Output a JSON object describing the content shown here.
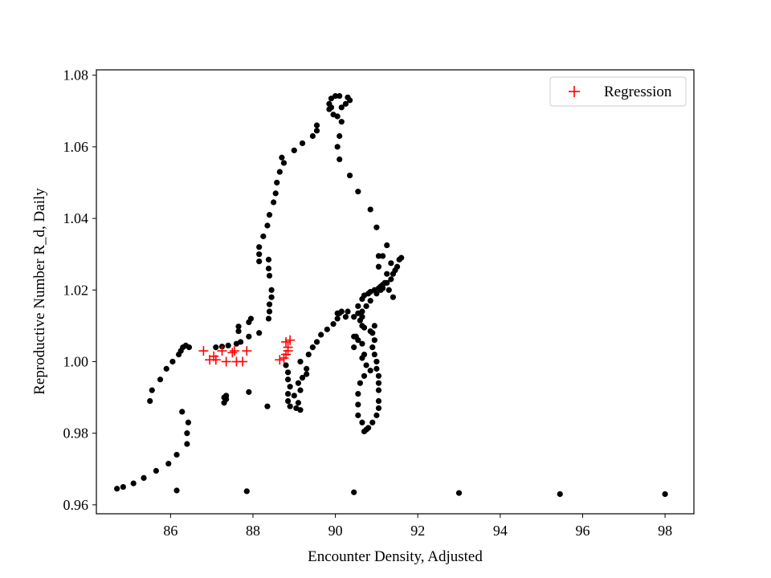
{
  "chart_data": {
    "type": "scatter",
    "title": "",
    "xlabel": "Encounter Density, Adjusted",
    "ylabel": "Reproductive Number R_d, Daily",
    "xlim": [
      84.2,
      98.7
    ],
    "ylim": [
      0.9575,
      1.0815
    ],
    "xticks": [
      86,
      88,
      90,
      92,
      94,
      96,
      98
    ],
    "xtick_labels": [
      "86",
      "88",
      "90",
      "92",
      "94",
      "96",
      "98"
    ],
    "yticks": [
      0.96,
      0.98,
      1.0,
      1.02,
      1.04,
      1.06,
      1.08
    ],
    "ytick_labels": [
      "0.96",
      "0.98",
      "1.00",
      "1.02",
      "1.04",
      "1.06",
      "1.08"
    ],
    "grid": false,
    "legend": {
      "position": "top-right",
      "entries": [
        {
          "label": "Regression",
          "marker": "+",
          "color": "#ff0000"
        }
      ]
    },
    "series": [
      {
        "marker": "circle",
        "color": "#000000",
        "points": [
          [
            84.7,
            0.9645
          ],
          [
            84.85,
            0.965
          ],
          [
            85.1,
            0.966
          ],
          [
            85.35,
            0.9675
          ],
          [
            85.65,
            0.9695
          ],
          [
            85.95,
            0.9715
          ],
          [
            86.15,
            0.974
          ],
          [
            86.4,
            0.977
          ],
          [
            86.4,
            0.98
          ],
          [
            86.43,
            0.983
          ],
          [
            86.28,
            0.986
          ],
          [
            86.15,
            0.964
          ],
          [
            87.85,
            0.9638
          ],
          [
            90.45,
            0.9635
          ],
          [
            93.0,
            0.9633
          ],
          [
            95.45,
            0.963
          ],
          [
            98.0,
            0.963
          ],
          [
            85.5,
            0.989
          ],
          [
            85.55,
            0.992
          ],
          [
            85.75,
            0.995
          ],
          [
            85.9,
            0.998
          ],
          [
            86.05,
            1.0
          ],
          [
            86.2,
            1.002
          ],
          [
            86.25,
            1.003
          ],
          [
            86.3,
            1.004
          ],
          [
            86.37,
            1.0045
          ],
          [
            86.45,
            1.004
          ],
          [
            87.1,
            1.004
          ],
          [
            87.25,
            1.0042
          ],
          [
            87.4,
            1.0045
          ],
          [
            87.6,
            1.005
          ],
          [
            87.65,
            1.0085
          ],
          [
            87.65,
            1.0098
          ],
          [
            87.9,
            1.011
          ],
          [
            87.95,
            1.012
          ],
          [
            87.9,
            1.007
          ],
          [
            87.7,
            1.0055
          ],
          [
            88.15,
            1.008
          ],
          [
            87.3,
            0.9885
          ],
          [
            87.35,
            0.9895
          ],
          [
            87.3,
            0.99
          ],
          [
            87.35,
            0.9905
          ],
          [
            87.9,
            0.9915
          ],
          [
            88.35,
            0.9875
          ],
          [
            88.38,
            1.012
          ],
          [
            88.4,
            1.014
          ],
          [
            88.4,
            1.016
          ],
          [
            88.45,
            1.018
          ],
          [
            88.45,
            1.02
          ],
          [
            88.4,
            1.024
          ],
          [
            88.38,
            1.026
          ],
          [
            88.38,
            1.0285
          ],
          [
            88.15,
            1.028
          ],
          [
            88.15,
            1.03
          ],
          [
            88.15,
            1.032
          ],
          [
            88.25,
            1.035
          ],
          [
            88.35,
            1.038
          ],
          [
            88.4,
            1.041
          ],
          [
            88.5,
            1.0445
          ],
          [
            88.55,
            1.047
          ],
          [
            88.58,
            1.05
          ],
          [
            88.65,
            1.053
          ],
          [
            88.75,
            1.0555
          ],
          [
            88.7,
            1.057
          ],
          [
            89.0,
            1.059
          ],
          [
            89.2,
            1.061
          ],
          [
            89.45,
            1.063
          ],
          [
            89.55,
            1.0645
          ],
          [
            89.55,
            1.066
          ],
          [
            89.85,
            1.0705
          ],
          [
            89.85,
            1.072
          ],
          [
            89.9,
            1.0735
          ],
          [
            90.0,
            1.0742
          ],
          [
            90.1,
            1.0742
          ],
          [
            89.9,
            1.071
          ],
          [
            89.95,
            1.069
          ],
          [
            90.05,
            1.0685
          ],
          [
            90.15,
            1.071
          ],
          [
            90.25,
            1.072
          ],
          [
            90.35,
            1.073
          ],
          [
            90.3,
            1.0738
          ],
          [
            90.15,
            1.067
          ],
          [
            90.1,
            1.063
          ],
          [
            90.05,
            1.06
          ],
          [
            90.1,
            1.0565
          ],
          [
            90.35,
            1.052
          ],
          [
            90.55,
            1.0475
          ],
          [
            90.85,
            1.0425
          ],
          [
            91.0,
            1.0375
          ],
          [
            91.25,
            1.0325
          ],
          [
            88.8,
            0.999
          ],
          [
            88.85,
            0.997
          ],
          [
            88.85,
            0.995
          ],
          [
            88.9,
            0.993
          ],
          [
            88.85,
            0.991
          ],
          [
            88.85,
            0.989
          ],
          [
            88.9,
            0.9875
          ],
          [
            89.05,
            0.987
          ],
          [
            89.15,
            0.9865
          ],
          [
            89.1,
            0.9885
          ],
          [
            89.0,
            0.9905
          ],
          [
            89.15,
            0.992
          ],
          [
            89.1,
            0.994
          ],
          [
            89.2,
            0.9955
          ],
          [
            89.3,
            0.9965
          ],
          [
            89.3,
            0.998
          ],
          [
            89.15,
            1.0
          ],
          [
            89.35,
            1.002
          ],
          [
            89.45,
            1.004
          ],
          [
            89.55,
            1.0055
          ],
          [
            89.65,
            1.0075
          ],
          [
            89.8,
            1.009
          ],
          [
            89.95,
            1.0105
          ],
          [
            90.05,
            1.012
          ],
          [
            90.05,
            1.0135
          ],
          [
            90.15,
            1.014
          ],
          [
            90.3,
            1.014
          ],
          [
            90.1,
            1.0135
          ],
          [
            90.25,
            1.0125
          ],
          [
            90.45,
            1.0125
          ],
          [
            90.55,
            1.0135
          ],
          [
            90.65,
            1.0125
          ],
          [
            90.45,
            1.007
          ],
          [
            90.55,
            1.006
          ],
          [
            90.65,
            1.005
          ],
          [
            90.7,
            1.002
          ],
          [
            90.75,
            0.999
          ],
          [
            90.85,
            0.9975
          ],
          [
            90.7,
            0.996
          ],
          [
            90.6,
            0.994
          ],
          [
            90.55,
            0.991
          ],
          [
            90.55,
            0.988
          ],
          [
            90.55,
            0.985
          ],
          [
            90.65,
            0.983
          ],
          [
            90.7,
            0.9805
          ],
          [
            90.75,
            0.981
          ],
          [
            90.8,
            0.9815
          ],
          [
            90.9,
            0.983
          ],
          [
            91.0,
            0.985
          ],
          [
            91.05,
            0.987
          ],
          [
            91.05,
            0.989
          ],
          [
            91.05,
            0.992
          ],
          [
            91.05,
            0.994
          ],
          [
            91.05,
            0.996
          ],
          [
            91.0,
            0.998
          ],
          [
            91.0,
            1.0
          ],
          [
            90.95,
            1.002
          ],
          [
            90.9,
            1.004
          ],
          [
            90.95,
            1.006
          ],
          [
            90.9,
            1.008
          ],
          [
            90.95,
            1.01
          ],
          [
            90.55,
            1.0155
          ],
          [
            90.65,
            1.0175
          ],
          [
            90.7,
            1.0185
          ],
          [
            90.8,
            1.019
          ],
          [
            90.85,
            1.0195
          ],
          [
            90.95,
            1.02
          ],
          [
            91.05,
            1.0205
          ],
          [
            91.1,
            1.021
          ],
          [
            91.15,
            1.0215
          ],
          [
            91.2,
            1.022
          ],
          [
            91.0,
            1.019
          ],
          [
            91.1,
            1.02
          ],
          [
            91.25,
            1.022
          ],
          [
            91.35,
            1.023
          ],
          [
            91.4,
            1.0245
          ],
          [
            91.45,
            1.0255
          ],
          [
            91.5,
            1.0265
          ],
          [
            91.55,
            1.0285
          ],
          [
            91.6,
            1.029
          ],
          [
            91.35,
            1.0275
          ],
          [
            91.25,
            1.0245
          ],
          [
            91.3,
            1.02
          ],
          [
            91.4,
            1.018
          ],
          [
            91.15,
            1.0205
          ],
          [
            91.05,
            1.0265
          ],
          [
            91.05,
            1.0295
          ],
          [
            91.15,
            1.0295
          ],
          [
            90.85,
            1.017
          ],
          [
            90.75,
            1.0155
          ],
          [
            90.65,
            1.014
          ],
          [
            90.6,
            1.0115
          ],
          [
            90.7,
            1.0095
          ],
          [
            90.85,
            1.0085
          ],
          [
            90.65,
            1.01
          ],
          [
            90.45,
            1.004
          ],
          [
            90.65,
            1.001
          ],
          [
            90.5,
            1.007
          ]
        ]
      },
      {
        "name": "Regression",
        "marker": "+",
        "color": "#ff0000",
        "points": [
          [
            86.8,
            1.003
          ],
          [
            86.95,
            1.0005
          ],
          [
            87.05,
            1.0015
          ],
          [
            87.1,
            1.0005
          ],
          [
            87.25,
            1.003
          ],
          [
            87.35,
            1.0
          ],
          [
            87.5,
            1.0025
          ],
          [
            87.55,
            1.003
          ],
          [
            87.6,
            1.0
          ],
          [
            87.75,
            1.0
          ],
          [
            87.85,
            1.003
          ],
          [
            88.65,
            1.0005
          ],
          [
            88.75,
            1.001
          ],
          [
            88.8,
            1.002
          ],
          [
            88.85,
            1.003
          ],
          [
            88.85,
            1.004
          ],
          [
            88.8,
            1.0055
          ],
          [
            88.9,
            1.006
          ]
        ]
      }
    ]
  }
}
